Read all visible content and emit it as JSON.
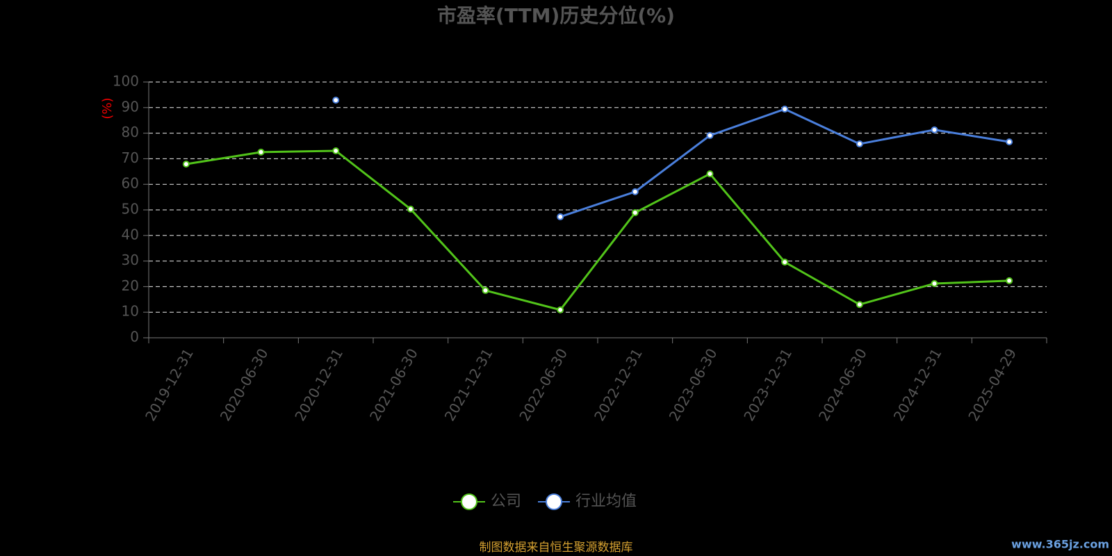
{
  "chart_data": {
    "type": "line",
    "title": "市盈率(TTM)历史分位(%)",
    "y_label": "(%)",
    "categories": [
      "2019-12-31",
      "2020-06-30",
      "2020-12-31",
      "2021-06-30",
      "2021-12-31",
      "2022-06-30",
      "2022-12-31",
      "2023-06-30",
      "2023-12-31",
      "2024-06-30",
      "2024-12-31",
      "2025-04-29"
    ],
    "series": [
      {
        "name": "公司",
        "color": "#52c41a",
        "values": [
          67.9,
          72.6,
          73.1,
          50.3,
          18.5,
          10.9,
          48.9,
          64.1,
          29.6,
          13,
          21.2,
          22.3
        ]
      },
      {
        "name": "行业均值",
        "color": "#4a7fdc",
        "values": [
          null,
          null,
          92.9,
          null,
          null,
          47.3,
          57.1,
          79.1,
          89.4,
          75.8,
          81.3,
          76.6
        ]
      }
    ],
    "ylim": [
      0,
      100
    ],
    "yticks": [
      0,
      10,
      20,
      30,
      40,
      50,
      60,
      70,
      80,
      90,
      100
    ],
    "grid": true,
    "source": "制图数据来自恒生聚源数据库",
    "watermark": "www.365jz.com"
  }
}
